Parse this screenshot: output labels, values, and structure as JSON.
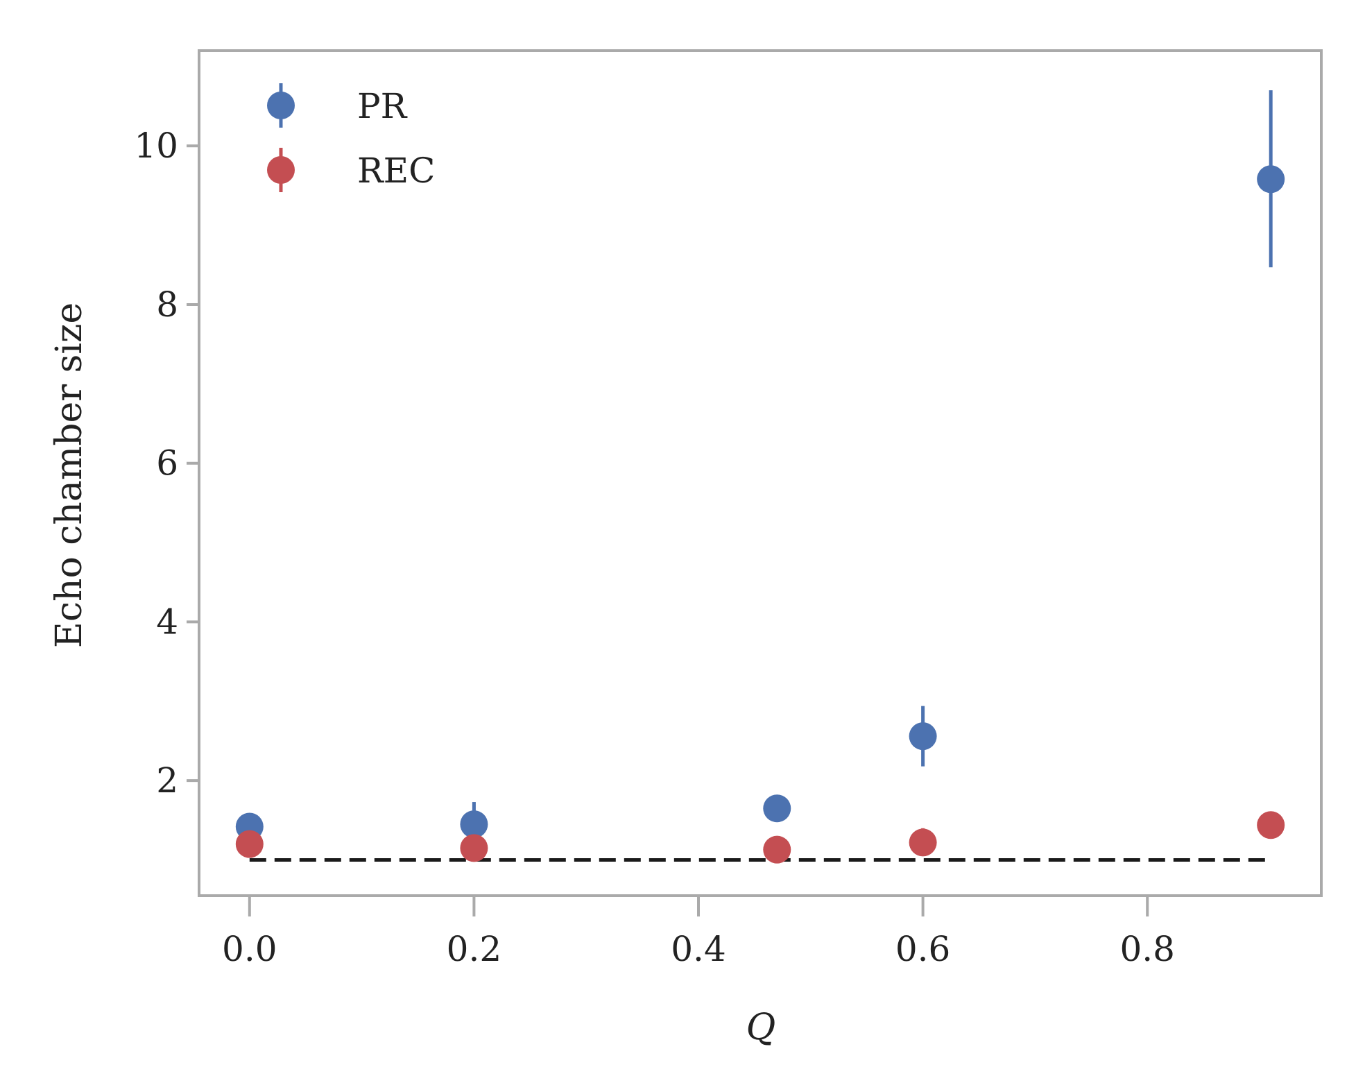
{
  "chart_data": {
    "type": "scatter",
    "title": "",
    "xlabel": "Q",
    "ylabel": "Echo chamber size",
    "xlim": [
      -0.045,
      0.955
    ],
    "ylim": [
      0.55,
      11.2
    ],
    "x_ticks": [
      {
        "value": 0.0,
        "label": "0.0"
      },
      {
        "value": 0.2,
        "label": "0.2"
      },
      {
        "value": 0.4,
        "label": "0.4"
      },
      {
        "value": 0.6,
        "label": "0.6"
      },
      {
        "value": 0.8,
        "label": "0.8"
      }
    ],
    "y_ticks": [
      {
        "value": 2,
        "label": "2"
      },
      {
        "value": 4,
        "label": "4"
      },
      {
        "value": 6,
        "label": "6"
      },
      {
        "value": 8,
        "label": "8"
      },
      {
        "value": 10,
        "label": "10"
      }
    ],
    "grid": false,
    "legend_position": "top-left",
    "reference_line": {
      "y": 1.0,
      "x_range": [
        0.0,
        0.91
      ],
      "style": "dashed",
      "color": "#1a1a1a"
    },
    "series": [
      {
        "name": "PR",
        "color": "#4c72b0",
        "points": [
          {
            "x": 0.0,
            "y": 1.42,
            "err_low": 1.37,
            "err_high": 1.47
          },
          {
            "x": 0.2,
            "y": 1.45,
            "err_low": 1.38,
            "err_high": 1.73
          },
          {
            "x": 0.47,
            "y": 1.65,
            "err_low": 1.6,
            "err_high": 1.7
          },
          {
            "x": 0.6,
            "y": 2.56,
            "err_low": 2.18,
            "err_high": 2.94
          },
          {
            "x": 0.91,
            "y": 9.58,
            "err_low": 8.47,
            "err_high": 10.7
          }
        ]
      },
      {
        "name": "REC",
        "color": "#c44e52",
        "points": [
          {
            "x": 0.0,
            "y": 1.2,
            "err_low": 1.15,
            "err_high": 1.25
          },
          {
            "x": 0.2,
            "y": 1.15,
            "err_low": 1.1,
            "err_high": 1.25
          },
          {
            "x": 0.47,
            "y": 1.13,
            "err_low": 1.09,
            "err_high": 1.17
          },
          {
            "x": 0.6,
            "y": 1.22,
            "err_low": 1.16,
            "err_high": 1.4
          },
          {
            "x": 0.91,
            "y": 1.44,
            "err_low": 1.4,
            "err_high": 1.48
          }
        ]
      }
    ]
  }
}
